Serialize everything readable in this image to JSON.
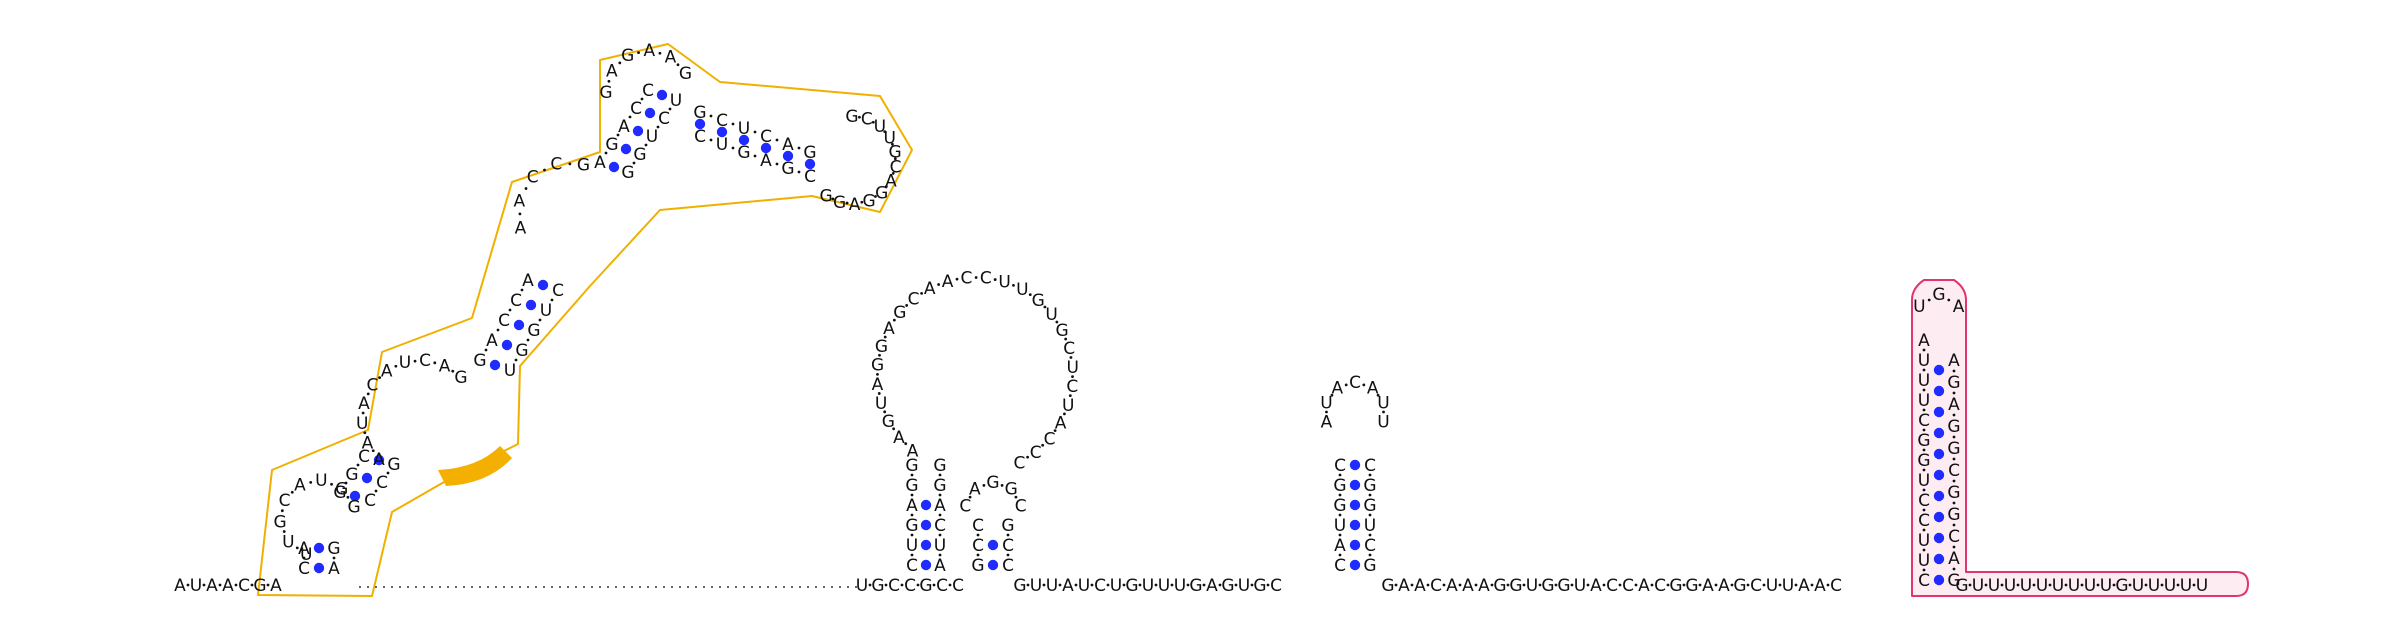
{
  "diagram": {
    "type": "rna-secondary-structure",
    "colors": {
      "nucleotide_text": "#111111",
      "backbone": "#111111",
      "base_pair": "#1f2bff",
      "domain_1_outline": "#f0b000",
      "domain_1_highlight": "#f4b000",
      "domain_2_outline": "#e0356d",
      "domain_2_fill": "#fbdde7"
    },
    "segments": [
      {
        "id": "s01",
        "seq": "AUAACGA"
      },
      {
        "id": "s02",
        "seq": "CAUUGCAUGGGAAUACAUCAGGACCAAACCGAGACCUGAGAAGGCUCAGGCUUGCAGGAGGGUUCUUCGAUCCGUCCGAGGUAGCGUCCGUGAGAAGCCUUGUCUGGUGGCCGGAUUUU"
      },
      {
        "id": "s03",
        "seq": "UGCCGCC"
      },
      {
        "id": "s04",
        "seq": "CUGAGGAAGUAGGAGCAACCUUGUGCUCUACCCGAGGCCCAGGCAGG"
      },
      {
        "id": "s05",
        "seq": "GUUAUCUGUUUGAGUGC"
      },
      {
        "id": "s06",
        "seq": "CUGGCGAUACACAUUGCCUGCAC"
      },
      {
        "id": "s07",
        "seq": "GAACAAAGGUGGUACCACGGAAGCUUAAC"
      },
      {
        "id": "s08",
        "seq": "UUCUGCUUUAUUGAUUGAGGCGGACAG"
      },
      {
        "id": "s09",
        "seq": "GUUUUUUUUUGUUUUU"
      }
    ],
    "stem_left_1": "CUUCCUGGCUUUAUUGAUUGAGGCGGACAG",
    "loop_pink": "AUGAU",
    "stem_right_1": "AGGCGGAC"
  }
}
